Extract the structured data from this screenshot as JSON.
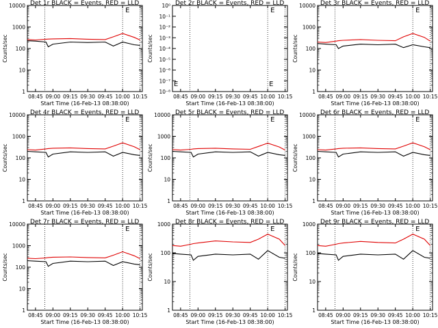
{
  "x_ticks": [
    "08:45",
    "09:00",
    "09:15",
    "09:30",
    "09:45",
    "10:00",
    "10:15"
  ],
  "xlabel": "Start Time (16-Feb-13 08:38:00)",
  "ylabel": "Counts/sec",
  "yticks_std": [
    "1",
    "10",
    "100",
    "1000",
    "10000"
  ],
  "yticks_det2": [
    "10⁻⁸",
    "10⁻⁷",
    "10⁻⁶",
    "10⁻⁵",
    "10⁻⁴",
    "10⁻³",
    "10⁻²",
    "10⁻¹",
    "10⁰"
  ],
  "marker_char": "E",
  "colors": {
    "events": "#000000",
    "lld": "#e00000"
  },
  "chart_data": [
    {
      "type": "line",
      "title": "Det 1r BLACK = Events, RED = LLD",
      "ylim": [
        1,
        10000
      ],
      "log_y": true,
      "x": [
        "08:38",
        "08:45",
        "08:54",
        "08:56",
        "09:00",
        "09:15",
        "09:30",
        "09:45",
        "09:52",
        "10:00",
        "10:10",
        "10:15"
      ],
      "series": [
        {
          "name": "Events",
          "color": "#000000",
          "values": [
            230,
            220,
            200,
            120,
            160,
            200,
            190,
            200,
            130,
            200,
            150,
            140
          ]
        },
        {
          "name": "LLD",
          "color": "#e00000",
          "values": [
            260,
            250,
            270,
            275,
            280,
            290,
            270,
            260,
            350,
            500,
            330,
            250
          ]
        }
      ]
    },
    {
      "type": "line",
      "title": "Det 2r BLACK = Events, RED = LLD",
      "ylim": [
        1e-08,
        1
      ],
      "log_y": true,
      "x": [],
      "series": []
    },
    {
      "type": "line",
      "title": "Det 3r BLACK = Events, RED = LLD",
      "ylim": [
        1,
        10000
      ],
      "log_y": true,
      "x": [
        "08:38",
        "08:45",
        "08:54",
        "08:56",
        "09:00",
        "09:15",
        "09:30",
        "09:45",
        "09:52",
        "10:00",
        "10:10",
        "10:15"
      ],
      "series": [
        {
          "name": "Events",
          "color": "#000000",
          "values": [
            170,
            160,
            150,
            100,
            130,
            160,
            150,
            160,
            110,
            150,
            120,
            110
          ]
        },
        {
          "name": "LLD",
          "color": "#e00000",
          "values": [
            200,
            190,
            220,
            230,
            240,
            260,
            240,
            230,
            350,
            500,
            330,
            220
          ]
        }
      ]
    },
    {
      "type": "line",
      "title": "Det 4r BLACK = Events, RED = LLD",
      "ylim": [
        1,
        10000
      ],
      "log_y": true,
      "x": [
        "08:38",
        "08:45",
        "08:54",
        "08:56",
        "09:00",
        "09:15",
        "09:30",
        "09:45",
        "09:52",
        "10:00",
        "10:10",
        "10:15"
      ],
      "series": [
        {
          "name": "Events",
          "color": "#000000",
          "values": [
            200,
            190,
            180,
            110,
            150,
            190,
            180,
            190,
            120,
            180,
            140,
            130
          ]
        },
        {
          "name": "LLD",
          "color": "#e00000",
          "values": [
            240,
            230,
            260,
            270,
            280,
            290,
            270,
            260,
            350,
            500,
            330,
            240
          ]
        }
      ]
    },
    {
      "type": "line",
      "title": "Det 5r BLACK = Events, RED = LLD",
      "ylim": [
        1,
        10000
      ],
      "log_y": true,
      "x": [
        "08:38",
        "08:45",
        "08:54",
        "08:56",
        "09:00",
        "09:15",
        "09:30",
        "09:45",
        "09:52",
        "10:00",
        "10:10",
        "10:15"
      ],
      "series": [
        {
          "name": "Events",
          "color": "#000000",
          "values": [
            200,
            190,
            180,
            110,
            150,
            190,
            180,
            190,
            120,
            180,
            140,
            130
          ]
        },
        {
          "name": "LLD",
          "color": "#e00000",
          "values": [
            240,
            230,
            250,
            260,
            270,
            280,
            260,
            250,
            340,
            480,
            320,
            230
          ]
        }
      ]
    },
    {
      "type": "line",
      "title": "Det 6r BLACK = Events, RED = LLD",
      "ylim": [
        1,
        10000
      ],
      "log_y": true,
      "x": [
        "08:38",
        "08:45",
        "08:54",
        "08:56",
        "09:00",
        "09:15",
        "09:30",
        "09:45",
        "09:52",
        "10:00",
        "10:10",
        "10:15"
      ],
      "series": [
        {
          "name": "Events",
          "color": "#000000",
          "values": [
            200,
            190,
            180,
            110,
            150,
            190,
            180,
            190,
            120,
            180,
            140,
            130
          ]
        },
        {
          "name": "LLD",
          "color": "#e00000",
          "values": [
            240,
            230,
            260,
            270,
            280,
            290,
            270,
            260,
            350,
            500,
            330,
            240
          ]
        }
      ]
    },
    {
      "type": "line",
      "title": "Det 7r BLACK = Events, RED = LLD",
      "ylim": [
        1,
        10000
      ],
      "log_y": true,
      "x": [
        "08:38",
        "08:45",
        "08:54",
        "08:56",
        "09:00",
        "09:15",
        "09:30",
        "09:45",
        "09:52",
        "10:00",
        "10:10",
        "10:15"
      ],
      "series": [
        {
          "name": "Events",
          "color": "#000000",
          "values": [
            200,
            190,
            180,
            110,
            150,
            190,
            180,
            190,
            120,
            180,
            140,
            130
          ]
        },
        {
          "name": "LLD",
          "color": "#e00000",
          "values": [
            260,
            250,
            270,
            280,
            290,
            300,
            280,
            270,
            360,
            520,
            340,
            250
          ]
        }
      ]
    },
    {
      "type": "line",
      "title": "Det 8r BLACK = Events, RED = LLD",
      "ylim": [
        1,
        1000
      ],
      "log_y": true,
      "x": [
        "08:38",
        "08:45",
        "08:54",
        "08:56",
        "09:00",
        "09:15",
        "09:30",
        "09:45",
        "09:52",
        "10:00",
        "10:10",
        "10:15"
      ],
      "series": [
        {
          "name": "Events",
          "color": "#000000",
          "values": [
            95,
            90,
            85,
            55,
            75,
            90,
            85,
            90,
            60,
            120,
            70,
            65
          ]
        },
        {
          "name": "LLD",
          "color": "#e00000",
          "values": [
            180,
            170,
            200,
            210,
            220,
            260,
            240,
            230,
            300,
            450,
            300,
            180
          ]
        }
      ]
    },
    {
      "type": "line",
      "title": "Det 9r BLACK = Events, RED = LLD",
      "ylim": [
        1,
        1000
      ],
      "log_y": true,
      "x": [
        "08:38",
        "08:45",
        "08:54",
        "08:56",
        "09:00",
        "09:15",
        "09:30",
        "09:45",
        "09:52",
        "10:00",
        "10:10",
        "10:15"
      ],
      "series": [
        {
          "name": "Events",
          "color": "#000000",
          "values": [
            95,
            90,
            85,
            55,
            75,
            90,
            85,
            90,
            60,
            120,
            70,
            65
          ]
        },
        {
          "name": "LLD",
          "color": "#e00000",
          "values": [
            180,
            170,
            200,
            210,
            220,
            250,
            230,
            220,
            300,
            450,
            300,
            180
          ]
        }
      ]
    }
  ]
}
